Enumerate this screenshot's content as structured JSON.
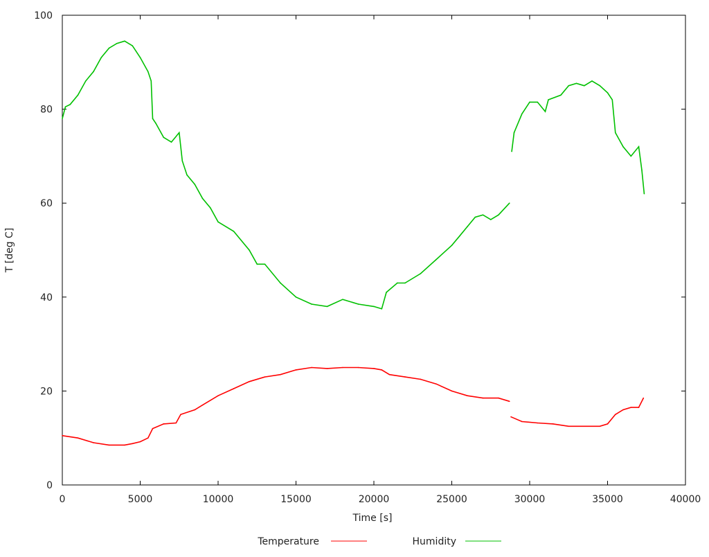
{
  "chart_data": {
    "type": "line",
    "title": "",
    "xlabel": "Time [s]",
    "ylabel": "T [deg C]",
    "xlim": [
      0,
      40000
    ],
    "ylim": [
      0,
      100
    ],
    "xticks": [
      0,
      5000,
      10000,
      15000,
      20000,
      25000,
      30000,
      35000,
      40000
    ],
    "yticks": [
      0,
      20,
      40,
      60,
      80,
      100
    ],
    "grid": false,
    "legend_placement": "bottom",
    "series": [
      {
        "name": "Temperature",
        "color": "#ff0000",
        "x": [
          0,
          1000,
          2000,
          3000,
          4000,
          4500,
          5000,
          5500,
          5800,
          6500,
          7300,
          7600,
          8500,
          9000,
          10000,
          11000,
          12000,
          13000,
          14000,
          15000,
          16000,
          17000,
          18000,
          19000,
          20000,
          20500,
          21000,
          22000,
          23000,
          24000,
          25000,
          26000,
          27000,
          28000,
          28700,
          28750,
          28800,
          29500,
          30500,
          31500,
          32500,
          33500,
          34500,
          35000,
          35500,
          36000,
          36500,
          37000,
          37300
        ],
        "y": [
          10.5,
          10,
          9,
          8.5,
          8.5,
          8.8,
          9.2,
          10,
          12,
          13,
          13.2,
          15,
          16,
          17,
          19,
          20.5,
          22,
          23,
          23.5,
          24.5,
          25,
          24.8,
          25,
          25,
          24.8,
          24.5,
          23.5,
          23,
          22.5,
          21.5,
          20,
          19,
          18.5,
          18.5,
          17.8,
          null,
          14.5,
          13.5,
          13.2,
          13,
          12.5,
          12.5,
          12.5,
          13,
          15,
          16,
          16.5,
          16.5,
          18.5
        ]
      },
      {
        "name": "Humidity",
        "color": "#00c000",
        "x": [
          0,
          200,
          500,
          1000,
          1500,
          2000,
          2500,
          3000,
          3500,
          4000,
          4500,
          5000,
          5500,
          5700,
          5800,
          6000,
          6500,
          7000,
          7500,
          7700,
          8000,
          8500,
          9000,
          9500,
          10000,
          11000,
          12000,
          12500,
          13000,
          14000,
          15000,
          16000,
          17000,
          18000,
          19000,
          20000,
          20500,
          20800,
          21500,
          22000,
          23000,
          24000,
          25000,
          25500,
          26000,
          26500,
          27000,
          27500,
          28000,
          28700,
          28800,
          28850,
          29000,
          29500,
          30000,
          30500,
          31000,
          31200,
          32000,
          32500,
          33000,
          33500,
          34000,
          34500,
          35000,
          35300,
          35500,
          36000,
          36500,
          37000,
          37200,
          37350
        ],
        "y": [
          78,
          80.5,
          81,
          83,
          86,
          88,
          91,
          93,
          94,
          94.5,
          93.5,
          91,
          88,
          86,
          78,
          77,
          74,
          73,
          75,
          69,
          66,
          64,
          61,
          59,
          56,
          54,
          50,
          47,
          47,
          43,
          40,
          38.5,
          38,
          39.5,
          38.5,
          38,
          37.5,
          41,
          43,
          43,
          45,
          48,
          51,
          53,
          55,
          57,
          57.5,
          56.5,
          57.5,
          60,
          null,
          71,
          75,
          79,
          81.5,
          81.5,
          79.5,
          82,
          83,
          85,
          85.5,
          85,
          86,
          85,
          83.5,
          82,
          75,
          72,
          70,
          72,
          67,
          62
        ]
      }
    ]
  }
}
